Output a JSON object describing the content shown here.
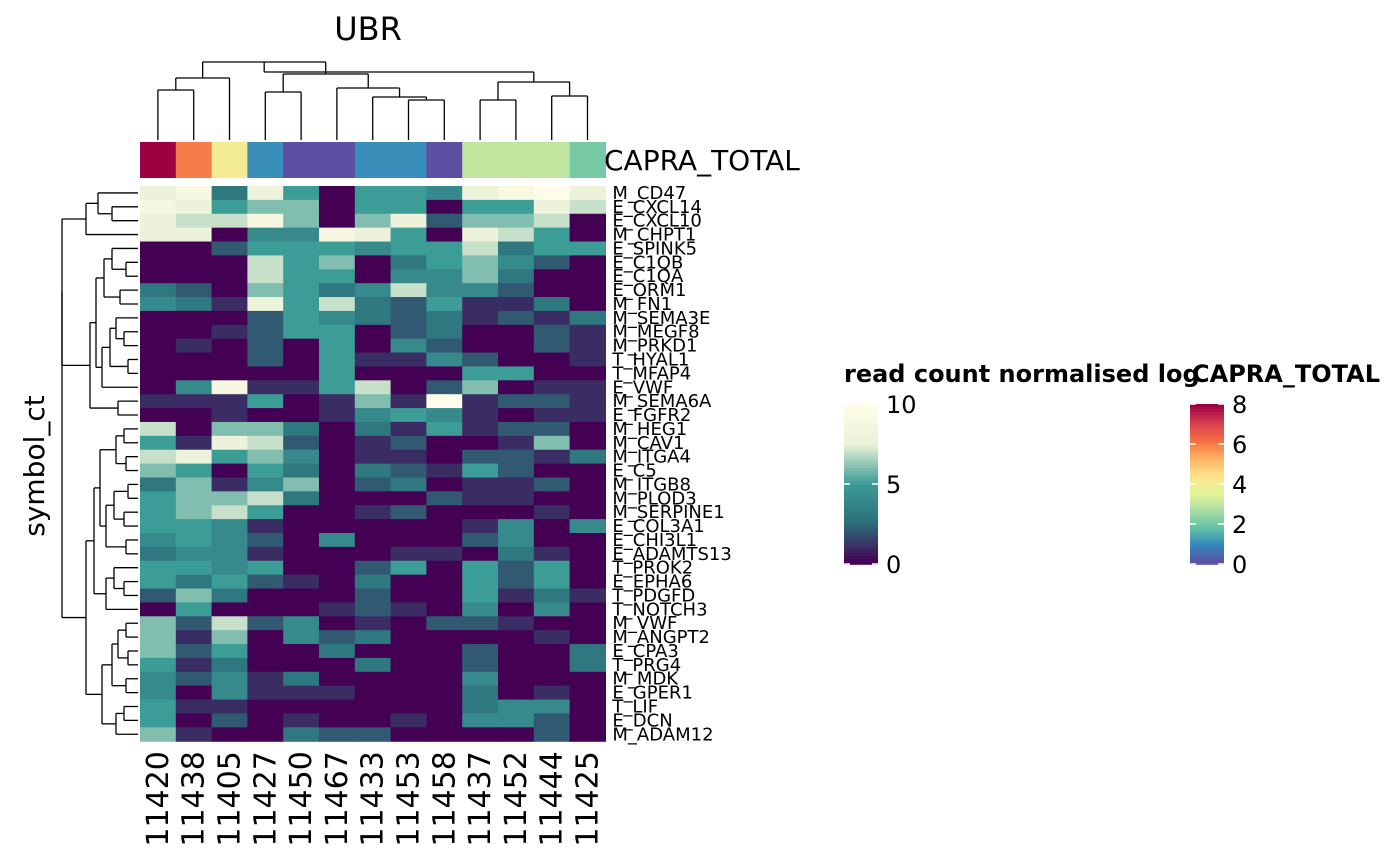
{
  "chart_data": {
    "type": "heatmap",
    "title": "UBR",
    "ylabel": "symbol_ct",
    "annotation_label": "CAPRA_TOTAL",
    "columns": [
      "11420",
      "11438",
      "11405",
      "11427",
      "11450",
      "11467",
      "11433",
      "11453",
      "11458",
      "11437",
      "11452",
      "11444",
      "11425"
    ],
    "capra_total": [
      8,
      6,
      4,
      1,
      0,
      0,
      1,
      1,
      0,
      3,
      3,
      3,
      2
    ],
    "rows": [
      "M_CD47",
      "E_CXCL14",
      "E_CXCL10",
      "M_CHPT1",
      "E_SPINK5",
      "E_C1QB",
      "E_C1QA",
      "E_ORM1",
      "M_FN1",
      "M_SEMA3E",
      "M_MEGF8",
      "M_PRKD1",
      "T_HYAL1",
      "T_MFAP4",
      "E_VWF",
      "M_SEMA6A",
      "E_FGFR2",
      "M_HEG1",
      "M_CAV1",
      "M_ITGA4",
      "E_C5",
      "M_ITGB8",
      "M_PLOD3",
      "M_SERPINE1",
      "E_COL3A1",
      "E_CHI3L1",
      "E_ADAMTS13",
      "T_PROK2",
      "E_EPHA6",
      "T_PDGFD",
      "T_NOTCH3",
      "M_VWF",
      "M_ANGPT2",
      "E_CPA3",
      "T_PRG4",
      "M_MDK",
      "E_GPER1",
      "T_LIF",
      "E_DCN",
      "M_ADAM12"
    ],
    "values": [
      [
        8,
        9,
        3,
        8,
        5,
        0,
        5,
        5,
        4,
        8,
        9,
        10,
        8
      ],
      [
        9,
        8,
        5,
        6,
        6,
        0,
        5,
        5,
        0,
        5,
        5,
        8,
        7
      ],
      [
        8,
        7,
        7,
        9,
        6,
        0,
        6,
        8,
        2,
        6,
        6,
        7,
        0
      ],
      [
        8,
        8,
        0,
        4,
        4,
        9,
        8,
        5,
        0,
        8,
        7,
        5,
        0
      ],
      [
        0,
        0,
        2,
        5,
        5,
        5,
        4,
        5,
        5,
        7,
        3,
        5,
        5
      ],
      [
        0,
        0,
        0,
        7,
        5,
        6,
        0,
        3,
        5,
        6,
        4,
        2,
        0
      ],
      [
        0,
        0,
        0,
        7,
        5,
        5,
        0,
        4,
        4,
        6,
        3,
        0,
        0
      ],
      [
        3,
        2,
        0,
        6,
        5,
        3,
        4,
        7,
        4,
        4,
        2,
        0,
        0
      ],
      [
        4,
        3,
        1,
        8,
        5,
        7,
        3,
        2,
        5,
        1,
        1,
        3,
        0
      ],
      [
        0,
        0,
        0,
        2,
        5,
        4,
        3,
        2,
        3,
        1,
        2,
        1,
        3
      ],
      [
        0,
        0,
        1,
        2,
        5,
        5,
        0,
        2,
        3,
        0,
        0,
        2,
        1
      ],
      [
        0,
        1,
        0,
        2,
        0,
        5,
        0,
        4,
        2,
        0,
        0,
        2,
        1
      ],
      [
        0,
        0,
        0,
        2,
        0,
        5,
        1,
        1,
        4,
        2,
        0,
        0,
        1
      ],
      [
        0,
        0,
        0,
        0,
        0,
        5,
        0,
        0,
        0,
        5,
        5,
        0,
        0
      ],
      [
        0,
        4,
        9,
        1,
        1,
        5,
        7,
        0,
        2,
        6,
        0,
        1,
        1
      ],
      [
        1,
        1,
        1,
        5,
        0,
        1,
        6,
        1,
        10,
        1,
        2,
        2,
        1
      ],
      [
        0,
        0,
        1,
        0,
        0,
        1,
        4,
        5,
        4,
        1,
        0,
        1,
        1
      ],
      [
        7,
        0,
        6,
        6,
        3,
        0,
        3,
        1,
        5,
        1,
        2,
        2,
        0
      ],
      [
        5,
        1,
        8,
        7,
        2,
        0,
        1,
        2,
        0,
        0,
        1,
        6,
        0
      ],
      [
        7,
        8,
        5,
        6,
        4,
        0,
        1,
        1,
        0,
        2,
        2,
        1,
        3
      ],
      [
        6,
        5,
        0,
        5,
        3,
        0,
        3,
        2,
        1,
        5,
        2,
        0,
        0
      ],
      [
        3,
        6,
        1,
        4,
        6,
        0,
        2,
        3,
        0,
        1,
        1,
        2,
        0
      ],
      [
        5,
        6,
        6,
        7,
        3,
        0,
        0,
        0,
        2,
        1,
        1,
        0,
        0
      ],
      [
        5,
        6,
        7,
        5,
        0,
        0,
        1,
        2,
        0,
        0,
        0,
        1,
        0
      ],
      [
        5,
        5,
        4,
        1,
        0,
        0,
        0,
        0,
        0,
        1,
        4,
        0,
        4
      ],
      [
        4,
        5,
        4,
        2,
        0,
        4,
        0,
        0,
        0,
        2,
        4,
        0,
        0
      ],
      [
        3,
        4,
        4,
        1,
        0,
        0,
        0,
        1,
        1,
        0,
        3,
        1,
        0
      ],
      [
        5,
        5,
        4,
        5,
        0,
        0,
        2,
        5,
        0,
        5,
        2,
        5,
        0
      ],
      [
        5,
        3,
        5,
        2,
        1,
        0,
        3,
        0,
        0,
        5,
        2,
        5,
        0
      ],
      [
        2,
        6,
        3,
        0,
        0,
        0,
        2,
        0,
        0,
        5,
        1,
        3,
        1
      ],
      [
        0,
        5,
        0,
        0,
        0,
        1,
        2,
        1,
        0,
        4,
        0,
        4,
        0
      ],
      [
        6,
        2,
        7,
        2,
        4,
        0,
        1,
        0,
        2,
        2,
        1,
        0,
        0
      ],
      [
        6,
        1,
        6,
        0,
        4,
        2,
        3,
        0,
        0,
        0,
        0,
        1,
        0
      ],
      [
        6,
        2,
        5,
        0,
        0,
        3,
        0,
        0,
        0,
        2,
        0,
        0,
        3
      ],
      [
        5,
        1,
        3,
        0,
        0,
        0,
        3,
        0,
        0,
        2,
        0,
        0,
        3
      ],
      [
        4,
        2,
        4,
        1,
        3,
        0,
        0,
        0,
        0,
        4,
        0,
        0,
        0
      ],
      [
        4,
        0,
        4,
        1,
        1,
        1,
        0,
        0,
        0,
        3,
        0,
        1,
        0
      ],
      [
        5,
        1,
        1,
        0,
        0,
        0,
        0,
        0,
        0,
        3,
        4,
        4,
        0
      ],
      [
        5,
        0,
        2,
        0,
        1,
        0,
        0,
        1,
        0,
        4,
        4,
        2,
        0
      ],
      [
        6,
        1,
        0,
        0,
        3,
        2,
        2,
        0,
        0,
        0,
        0,
        2,
        0
      ]
    ],
    "legends": [
      {
        "title": "read count normalised log",
        "ticks": [
          0,
          5,
          10
        ],
        "palette": [
          "#440154",
          "#2c6f7a",
          "#3c9c96",
          "#e8f1d6",
          "#fffde9"
        ]
      },
      {
        "title": "CAPRA_TOTAL",
        "ticks": [
          0,
          2,
          4,
          6,
          8
        ],
        "palette": [
          "#5e4fa2",
          "#3288bd",
          "#66c2a5",
          "#abdda4",
          "#e6f598",
          "#fee08b",
          "#fdae61",
          "#f46d43",
          "#d53e4f",
          "#9e0142"
        ]
      }
    ]
  }
}
